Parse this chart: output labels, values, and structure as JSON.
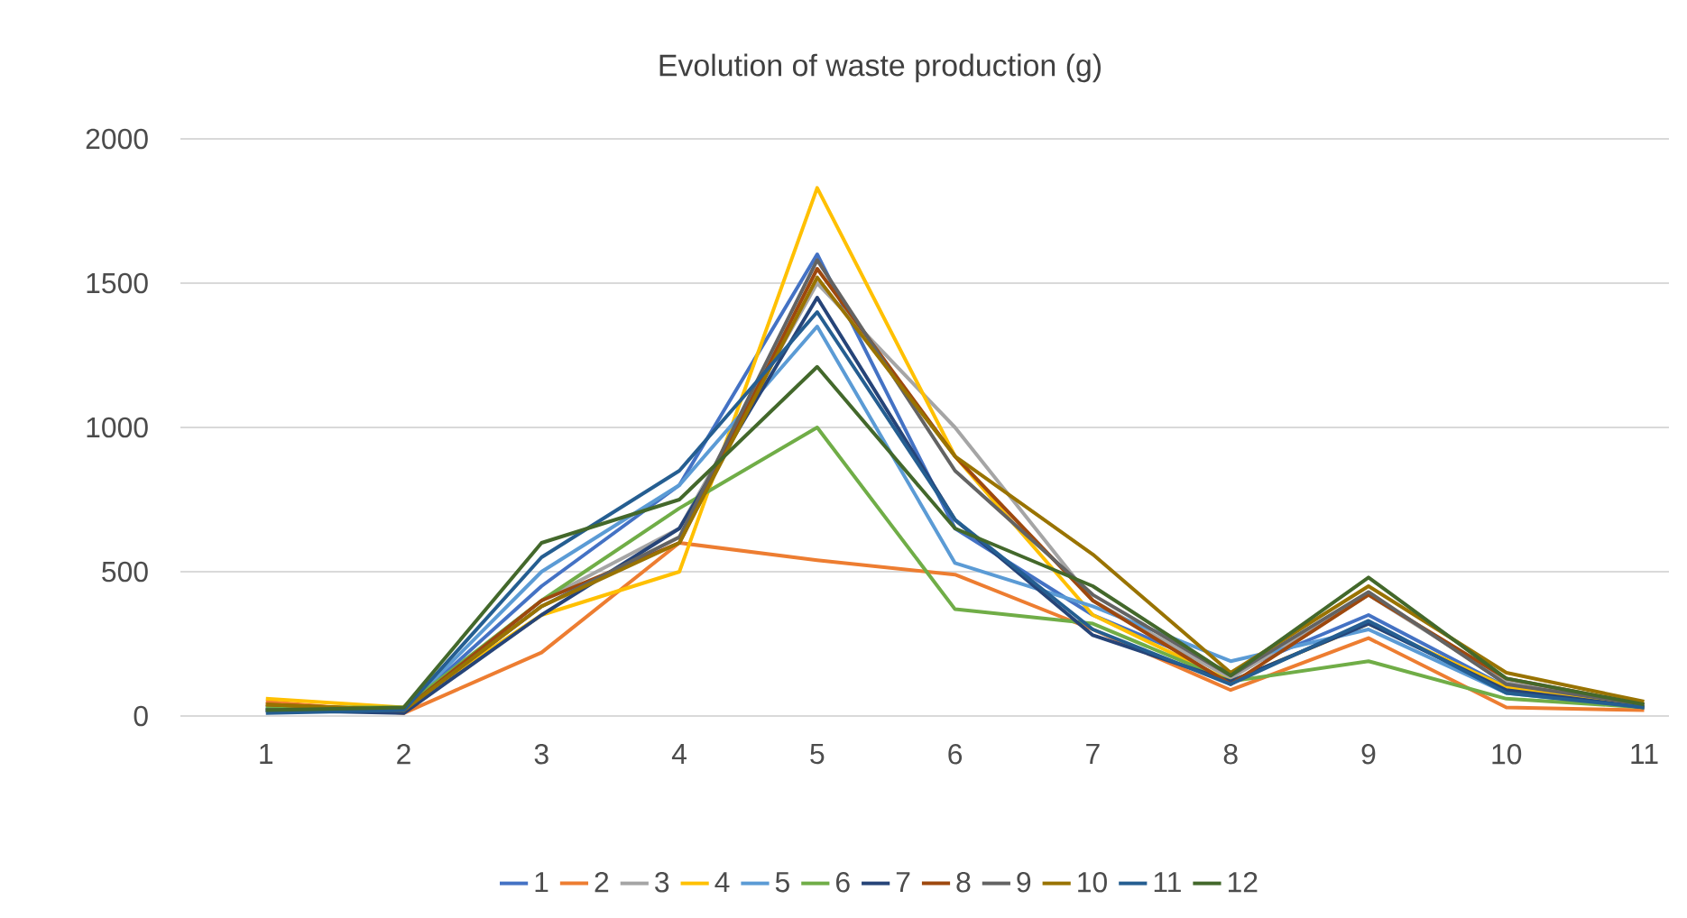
{
  "chart_data": {
    "type": "line",
    "title": "Evolution of waste production (g)",
    "categories": [
      "1",
      "2",
      "3",
      "4",
      "5",
      "6",
      "7",
      "8",
      "9",
      "10",
      "11"
    ],
    "ylim": [
      0,
      2000
    ],
    "yticks": [
      0,
      500,
      1000,
      1500,
      2000
    ],
    "grid": "y",
    "legend": "bottom",
    "marker": "none",
    "line_style": "solid",
    "series": [
      {
        "name": "1",
        "color": "#4472c4",
        "values": [
          30,
          20,
          450,
          800,
          1600,
          650,
          350,
          150,
          350,
          100,
          30
        ]
      },
      {
        "name": "2",
        "color": "#ed7d31",
        "values": [
          50,
          10,
          220,
          600,
          540,
          490,
          300,
          90,
          270,
          30,
          20
        ]
      },
      {
        "name": "3",
        "color": "#a5a5a5",
        "values": [
          20,
          20,
          400,
          650,
          1500,
          1000,
          400,
          130,
          420,
          120,
          30
        ]
      },
      {
        "name": "4",
        "color": "#ffc000",
        "values": [
          60,
          30,
          350,
          500,
          1830,
          900,
          350,
          120,
          320,
          100,
          30
        ]
      },
      {
        "name": "5",
        "color": "#5b9bd5",
        "values": [
          20,
          20,
          500,
          800,
          1350,
          530,
          380,
          190,
          300,
          80,
          30
        ]
      },
      {
        "name": "6",
        "color": "#70ad47",
        "values": [
          30,
          30,
          400,
          720,
          1000,
          370,
          320,
          120,
          190,
          60,
          30
        ]
      },
      {
        "name": "7",
        "color": "#264478",
        "values": [
          20,
          10,
          350,
          650,
          1450,
          680,
          280,
          120,
          320,
          90,
          30
        ]
      },
      {
        "name": "8",
        "color": "#9e480e",
        "values": [
          40,
          20,
          400,
          600,
          1550,
          900,
          400,
          110,
          420,
          130,
          40
        ]
      },
      {
        "name": "9",
        "color": "#636363",
        "values": [
          20,
          20,
          380,
          620,
          1580,
          850,
          420,
          140,
          430,
          110,
          40
        ]
      },
      {
        "name": "10",
        "color": "#997300",
        "values": [
          40,
          20,
          380,
          600,
          1520,
          900,
          560,
          150,
          450,
          150,
          50
        ]
      },
      {
        "name": "11",
        "color": "#255e91",
        "values": [
          10,
          20,
          550,
          850,
          1400,
          680,
          300,
          110,
          330,
          80,
          30
        ]
      },
      {
        "name": "12",
        "color": "#43682b",
        "values": [
          20,
          30,
          600,
          750,
          1210,
          650,
          450,
          140,
          480,
          130,
          40
        ]
      }
    ]
  }
}
